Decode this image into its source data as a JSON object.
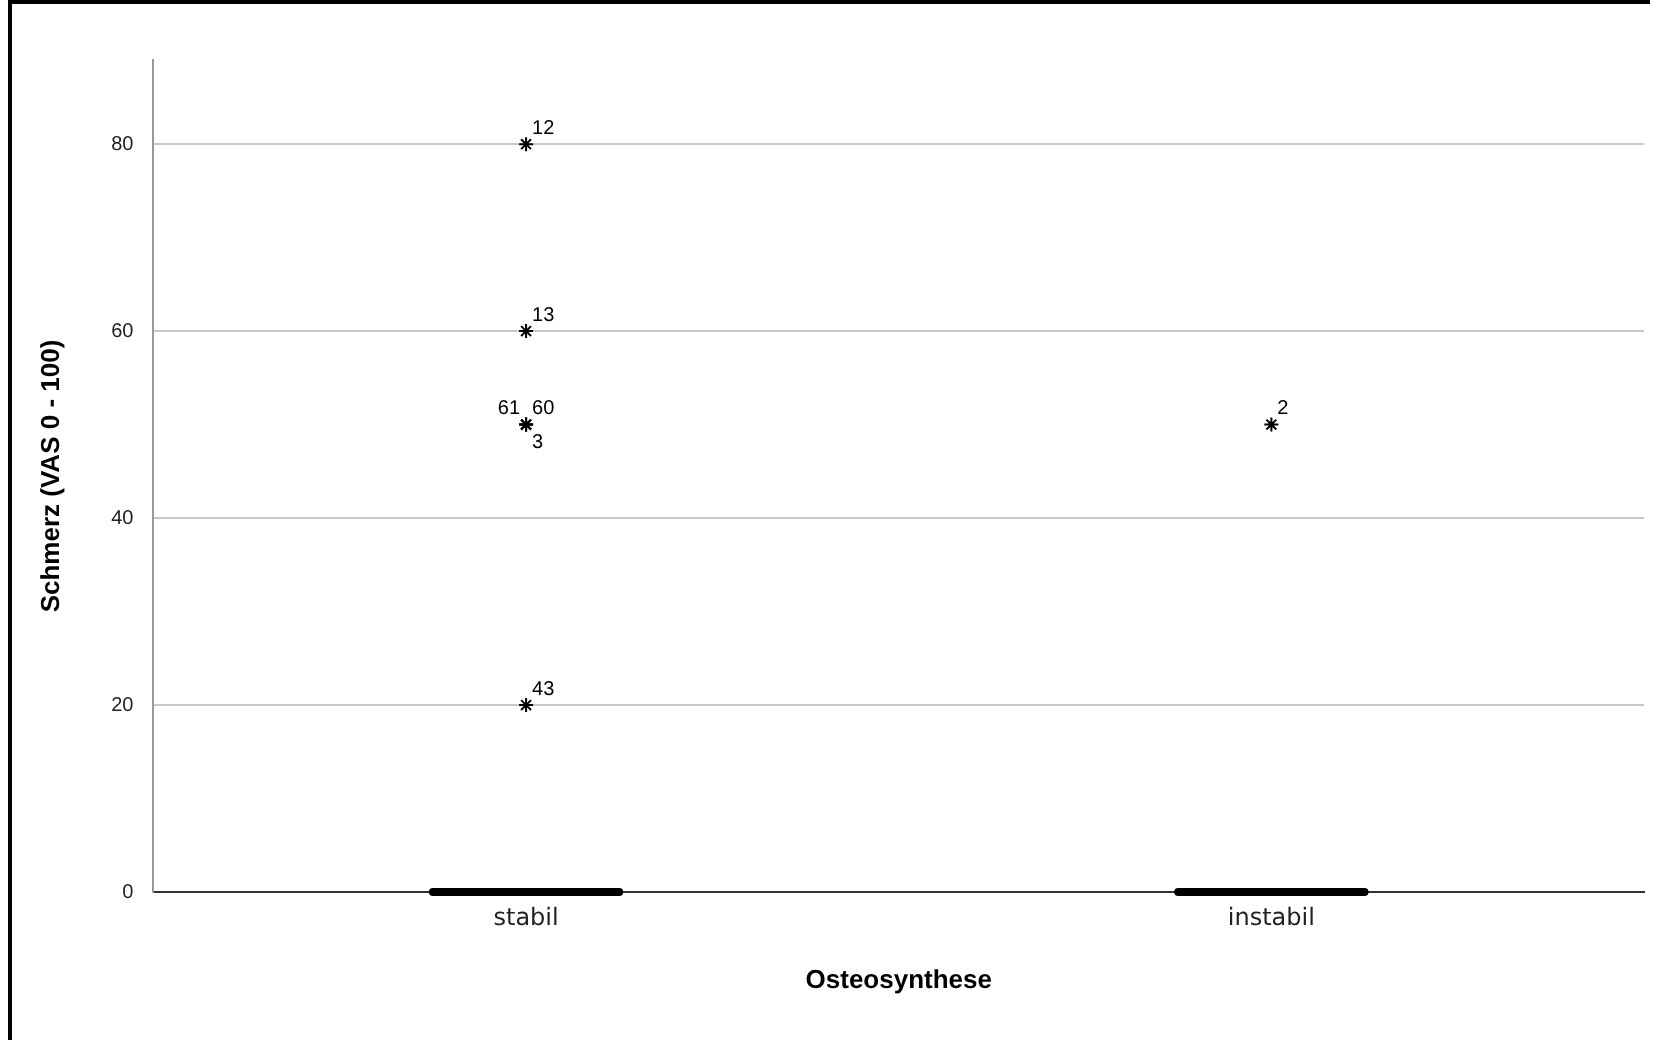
{
  "chart_data": {
    "type": "box",
    "xlabel": "Osteosynthese",
    "ylabel": "Schmerz (VAS 0 - 100)",
    "categories": [
      "stabil",
      "instabil"
    ],
    "boxes": [
      {
        "low": 0,
        "q1": 0,
        "median": 0,
        "q3": 0,
        "high": 0,
        "outliers": [
          80,
          60,
          50,
          50,
          50,
          20
        ]
      },
      {
        "low": 0,
        "q1": 0,
        "median": 0,
        "q3": 0,
        "high": 0,
        "outliers": [
          50
        ]
      }
    ],
    "color": "#000000",
    "marker": "star",
    "ylim": [
      0,
      89
    ],
    "yticks": [
      0,
      20,
      40,
      60,
      80
    ],
    "grid": "y",
    "legend": false,
    "annotations": [
      "12",
      "13",
      "60",
      "61",
      "3",
      "43",
      "2"
    ]
  }
}
